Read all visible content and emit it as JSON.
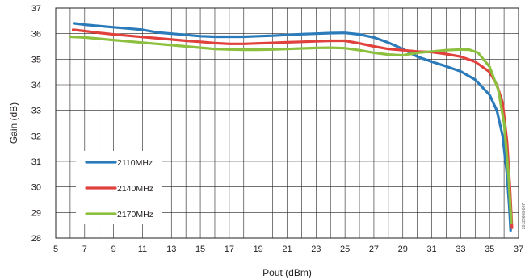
{
  "chart_data": {
    "type": "line",
    "xlabel": "Pout (dBm)",
    "ylabel": "Gain (dB)",
    "xlim": [
      5,
      37
    ],
    "ylim": [
      28,
      37
    ],
    "xticks": [
      5,
      7,
      9,
      11,
      13,
      15,
      17,
      19,
      21,
      23,
      25,
      27,
      29,
      31,
      33,
      35,
      37
    ],
    "yticks": [
      28,
      29,
      30,
      31,
      32,
      33,
      34,
      35,
      36,
      37
    ],
    "grid": true,
    "legend_position": "bottom-left",
    "side_note": "20129608-007",
    "series": [
      {
        "name": "2110MHz",
        "color": "#2b7bba",
        "x": [
          6.3,
          7,
          8,
          9,
          10,
          11,
          12,
          13,
          14,
          15,
          16,
          17,
          18,
          19,
          20,
          21,
          22,
          23,
          24,
          25,
          26,
          27,
          28,
          29,
          30,
          31,
          32,
          33,
          34,
          35,
          35.5,
          35.9,
          36.2,
          36.35,
          36.45
        ],
        "y": [
          36.4,
          36.35,
          36.3,
          36.25,
          36.2,
          36.15,
          36.05,
          36.0,
          35.95,
          35.9,
          35.88,
          35.88,
          35.88,
          35.9,
          35.92,
          35.95,
          35.98,
          36.0,
          36.02,
          36.03,
          35.97,
          35.85,
          35.65,
          35.4,
          35.1,
          34.9,
          34.72,
          34.52,
          34.2,
          33.6,
          33.0,
          32.0,
          30.5,
          29.3,
          28.3
        ]
      },
      {
        "name": "2140MHz",
        "color": "#e0413c",
        "x": [
          6.2,
          7,
          8,
          9,
          10,
          11,
          12,
          13,
          14,
          15,
          16,
          17,
          18,
          19,
          20,
          21,
          22,
          23,
          24,
          25,
          26,
          27,
          28,
          29,
          30,
          31,
          32,
          33,
          34,
          35,
          35.5,
          35.9,
          36.2,
          36.4,
          36.55
        ],
        "y": [
          36.15,
          36.1,
          36.03,
          35.97,
          35.92,
          35.87,
          35.82,
          35.77,
          35.72,
          35.68,
          35.63,
          35.6,
          35.6,
          35.62,
          35.64,
          35.66,
          35.68,
          35.7,
          35.72,
          35.72,
          35.62,
          35.5,
          35.4,
          35.35,
          35.3,
          35.28,
          35.2,
          35.1,
          34.9,
          34.5,
          34.0,
          33.3,
          31.8,
          30.0,
          28.4
        ]
      },
      {
        "name": "2170MHz",
        "color": "#8dc03f",
        "x": [
          6.0,
          7,
          8,
          9,
          10,
          11,
          12,
          13,
          14,
          15,
          16,
          17,
          18,
          19,
          20,
          21,
          22,
          23,
          24,
          25,
          26,
          27,
          28,
          29,
          30,
          31,
          32,
          33,
          33.6,
          34.2,
          35,
          35.6,
          36.0,
          36.3,
          36.5
        ],
        "y": [
          35.88,
          35.85,
          35.8,
          35.75,
          35.7,
          35.65,
          35.6,
          35.55,
          35.5,
          35.45,
          35.4,
          35.38,
          35.37,
          35.37,
          35.38,
          35.4,
          35.42,
          35.44,
          35.45,
          35.43,
          35.35,
          35.25,
          35.18,
          35.15,
          35.25,
          35.3,
          35.35,
          35.38,
          35.37,
          35.25,
          34.7,
          33.8,
          32.5,
          30.5,
          28.6
        ]
      }
    ]
  }
}
